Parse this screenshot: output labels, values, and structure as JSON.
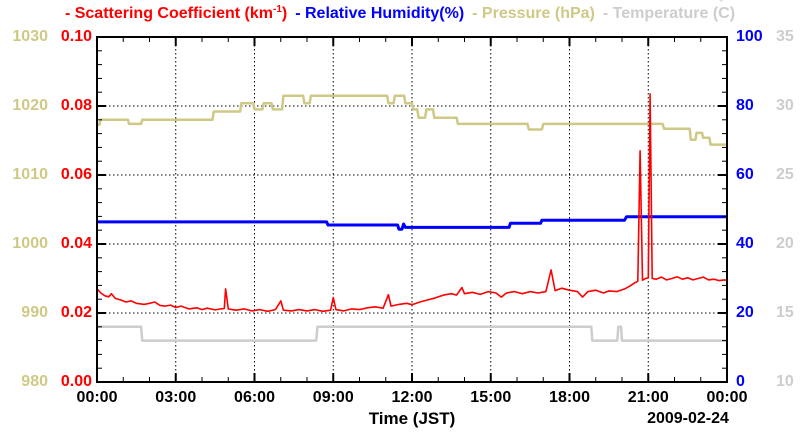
{
  "legend": {
    "entries": [
      {
        "id": "scattering",
        "dash": "-",
        "pre": "Scattering Coefficient (km",
        "sup": "-1",
        "deg": "",
        "post": ")",
        "color": "#ff0000"
      },
      {
        "id": "humidity",
        "dash": "-",
        "pre": "Relative Humidity(%)",
        "sup": "",
        "deg": "",
        "post": "",
        "color": "#0000ff"
      },
      {
        "id": "pressure",
        "dash": "-",
        "pre": "Pressure (hPa)",
        "sup": "",
        "deg": "",
        "post": "",
        "color": "#cfc985"
      },
      {
        "id": "temperature",
        "dash": "-",
        "pre": "Temperature (",
        "sup": "",
        "deg": "°",
        "post": "C)",
        "color": "#cdcdcd"
      }
    ]
  },
  "axes": {
    "pressure": {
      "ticks": [
        "1030",
        "1020",
        "1010",
        "1000",
        "990",
        "980"
      ],
      "color": "#cfc985",
      "range": [
        980,
        1030
      ]
    },
    "scattering": {
      "ticks": [
        "0.10",
        "0.08",
        "0.06",
        "0.04",
        "0.02",
        "0.00"
      ],
      "color": "#ff0000",
      "range": [
        0,
        0.1
      ]
    },
    "humidity": {
      "ticks": [
        "100",
        "80",
        "60",
        "40",
        "20",
        "0"
      ],
      "color": "#0000ff",
      "range": [
        0,
        100
      ]
    },
    "temperature": {
      "ticks": [
        "35",
        "30",
        "25",
        "20",
        "15",
        "10"
      ],
      "color": "#cdcdcd",
      "range": [
        10,
        35
      ]
    },
    "time": {
      "ticks": [
        "00:00",
        "03:00",
        "06:00",
        "09:00",
        "12:00",
        "15:00",
        "18:00",
        "21:00",
        "00:00"
      ],
      "tick_hours": [
        0,
        3,
        6,
        9,
        12,
        15,
        18,
        21,
        24
      ],
      "label": "Time (JST)",
      "date": "2009-02-24",
      "range_hours": [
        0,
        24
      ]
    }
  },
  "chart_data": {
    "type": "line",
    "title": "- Scattering Coefficient (km-1) - Relative Humidity(%) - Pressure (hPa) - Temperature (C)",
    "xlabel": "Time (JST)",
    "date_annotation": "2009-02-24",
    "x_unit": "hours JST on 2009-02-24",
    "x_range": [
      0,
      24
    ],
    "grid": {
      "x_major_hours": [
        3,
        6,
        9,
        12,
        15,
        18,
        21
      ],
      "y_major_scattering": [
        0.02,
        0.04,
        0.06,
        0.08
      ]
    },
    "series": [
      {
        "name": "Temperature",
        "unit": "C",
        "color": "#cdcdcd",
        "width": 2.5,
        "z": 1,
        "ylim": [
          10,
          35
        ],
        "points": [
          [
            0,
            14
          ],
          [
            1.68,
            14
          ],
          [
            1.72,
            13
          ],
          [
            8.35,
            13
          ],
          [
            8.4,
            14
          ],
          [
            18.83,
            14
          ],
          [
            18.87,
            13
          ],
          [
            19.82,
            13
          ],
          [
            19.86,
            14
          ],
          [
            19.96,
            14
          ],
          [
            20.0,
            13
          ],
          [
            24,
            13
          ]
        ]
      },
      {
        "name": "Pressure",
        "unit": "hPa",
        "color": "#cfc985",
        "width": 2.5,
        "z": 2,
        "ylim": [
          980,
          1030
        ],
        "points": [
          [
            0,
            1017.3
          ],
          [
            0.1,
            1017.3
          ],
          [
            0.13,
            1018.0
          ],
          [
            1.18,
            1018.0
          ],
          [
            1.22,
            1017.4
          ],
          [
            1.68,
            1017.4
          ],
          [
            1.72,
            1018.0
          ],
          [
            4.4,
            1018.0
          ],
          [
            4.45,
            1019.2
          ],
          [
            5.45,
            1019.2
          ],
          [
            5.5,
            1020.4
          ],
          [
            5.95,
            1020.4
          ],
          [
            6.0,
            1019.5
          ],
          [
            6.3,
            1019.5
          ],
          [
            6.35,
            1020.4
          ],
          [
            6.65,
            1020.4
          ],
          [
            6.7,
            1019.5
          ],
          [
            7.05,
            1019.5
          ],
          [
            7.1,
            1021.5
          ],
          [
            7.85,
            1021.5
          ],
          [
            7.9,
            1020.4
          ],
          [
            8.1,
            1020.4
          ],
          [
            8.15,
            1021.5
          ],
          [
            11.05,
            1021.5
          ],
          [
            11.1,
            1020.4
          ],
          [
            11.3,
            1020.4
          ],
          [
            11.35,
            1021.5
          ],
          [
            11.7,
            1021.5
          ],
          [
            11.75,
            1020.4
          ],
          [
            12.0,
            1020.4
          ],
          [
            12.05,
            1019.5
          ],
          [
            12.2,
            1019.5
          ],
          [
            12.25,
            1018.3
          ],
          [
            12.5,
            1018.3
          ],
          [
            12.55,
            1019.5
          ],
          [
            12.8,
            1019.5
          ],
          [
            12.85,
            1018.3
          ],
          [
            13.7,
            1018.3
          ],
          [
            13.75,
            1017.4
          ],
          [
            16.4,
            1017.4
          ],
          [
            16.45,
            1016.6
          ],
          [
            16.95,
            1016.6
          ],
          [
            17.0,
            1017.4
          ],
          [
            21.55,
            1017.4
          ],
          [
            21.6,
            1016.7
          ],
          [
            22.58,
            1016.7
          ],
          [
            22.62,
            1015.1
          ],
          [
            22.8,
            1015.1
          ],
          [
            22.84,
            1016.1
          ],
          [
            23.05,
            1016.1
          ],
          [
            23.09,
            1015.4
          ],
          [
            23.33,
            1015.4
          ],
          [
            23.37,
            1014.4
          ],
          [
            24,
            1014.4
          ]
        ]
      },
      {
        "name": "Relative Humidity",
        "unit": "%",
        "color": "#0000ff",
        "width": 3,
        "z": 3,
        "ylim": [
          0,
          100
        ],
        "points": [
          [
            0,
            46.4
          ],
          [
            8.75,
            46.4
          ],
          [
            8.8,
            45.5
          ],
          [
            11.45,
            45.5
          ],
          [
            11.5,
            44.3
          ],
          [
            11.62,
            44.3
          ],
          [
            11.68,
            45.8
          ],
          [
            11.75,
            44.8
          ],
          [
            15.7,
            44.8
          ],
          [
            15.75,
            46.0
          ],
          [
            16.9,
            46.0
          ],
          [
            16.95,
            46.9
          ],
          [
            20.1,
            46.9
          ],
          [
            20.17,
            47.9
          ],
          [
            24,
            47.9
          ]
        ]
      },
      {
        "name": "Scattering Coefficient",
        "unit": "km-1",
        "color": "#ff0000",
        "width": 1.6,
        "z": 4,
        "ylim": [
          0,
          0.1
        ],
        "points": [
          [
            0,
            0.027
          ],
          [
            0.15,
            0.0258
          ],
          [
            0.3,
            0.025
          ],
          [
            0.45,
            0.0247
          ],
          [
            0.55,
            0.0256
          ],
          [
            0.7,
            0.0242
          ],
          [
            0.9,
            0.0238
          ],
          [
            1.1,
            0.0232
          ],
          [
            1.3,
            0.0235
          ],
          [
            1.5,
            0.0228
          ],
          [
            1.8,
            0.0225
          ],
          [
            2.0,
            0.0228
          ],
          [
            2.2,
            0.0232
          ],
          [
            2.4,
            0.0222
          ],
          [
            2.6,
            0.022
          ],
          [
            2.8,
            0.0223
          ],
          [
            3.0,
            0.0216
          ],
          [
            3.2,
            0.022
          ],
          [
            3.5,
            0.0212
          ],
          [
            3.8,
            0.0215
          ],
          [
            4.0,
            0.021
          ],
          [
            4.2,
            0.0214
          ],
          [
            4.5,
            0.0209
          ],
          [
            4.7,
            0.0212
          ],
          [
            4.85,
            0.0213
          ],
          [
            4.9,
            0.027
          ],
          [
            5.0,
            0.0212
          ],
          [
            5.3,
            0.0208
          ],
          [
            5.6,
            0.0212
          ],
          [
            5.9,
            0.0206
          ],
          [
            6.2,
            0.021
          ],
          [
            6.5,
            0.0205
          ],
          [
            6.8,
            0.021
          ],
          [
            7.0,
            0.0235
          ],
          [
            7.1,
            0.0208
          ],
          [
            7.4,
            0.0206
          ],
          [
            7.7,
            0.021
          ],
          [
            8.0,
            0.0206
          ],
          [
            8.3,
            0.021
          ],
          [
            8.6,
            0.0205
          ],
          [
            8.9,
            0.0208
          ],
          [
            9.0,
            0.0245
          ],
          [
            9.1,
            0.021
          ],
          [
            9.4,
            0.0206
          ],
          [
            9.7,
            0.0212
          ],
          [
            10.0,
            0.021
          ],
          [
            10.3,
            0.0215
          ],
          [
            10.6,
            0.0218
          ],
          [
            10.9,
            0.0214
          ],
          [
            11.1,
            0.0253
          ],
          [
            11.2,
            0.022
          ],
          [
            11.5,
            0.0225
          ],
          [
            11.8,
            0.0228
          ],
          [
            12.0,
            0.0224
          ],
          [
            12.3,
            0.0232
          ],
          [
            12.6,
            0.0238
          ],
          [
            12.9,
            0.0244
          ],
          [
            13.2,
            0.0252
          ],
          [
            13.5,
            0.0256
          ],
          [
            13.7,
            0.0252
          ],
          [
            13.9,
            0.0274
          ],
          [
            14.0,
            0.0256
          ],
          [
            14.3,
            0.026
          ],
          [
            14.6,
            0.0254
          ],
          [
            14.9,
            0.0262
          ],
          [
            15.2,
            0.0258
          ],
          [
            15.4,
            0.0246
          ],
          [
            15.6,
            0.0258
          ],
          [
            15.9,
            0.0262
          ],
          [
            16.2,
            0.0256
          ],
          [
            16.5,
            0.0262
          ],
          [
            16.8,
            0.0258
          ],
          [
            17.1,
            0.0262
          ],
          [
            17.3,
            0.0325
          ],
          [
            17.45,
            0.0265
          ],
          [
            17.7,
            0.0272
          ],
          [
            18.0,
            0.0266
          ],
          [
            18.3,
            0.0262
          ],
          [
            18.5,
            0.0246
          ],
          [
            18.7,
            0.0262
          ],
          [
            19.0,
            0.0266
          ],
          [
            19.3,
            0.0258
          ],
          [
            19.5,
            0.0264
          ],
          [
            19.8,
            0.0262
          ],
          [
            20.1,
            0.027
          ],
          [
            20.3,
            0.0278
          ],
          [
            20.5,
            0.0288
          ],
          [
            20.6,
            0.0292
          ],
          [
            20.69,
            0.067
          ],
          [
            20.78,
            0.0295
          ],
          [
            20.9,
            0.03
          ],
          [
            21.0,
            0.0302
          ],
          [
            21.07,
            0.0835
          ],
          [
            21.15,
            0.03
          ],
          [
            21.3,
            0.0298
          ],
          [
            21.5,
            0.0304
          ],
          [
            21.7,
            0.0296
          ],
          [
            21.9,
            0.03
          ],
          [
            22.1,
            0.0305
          ],
          [
            22.3,
            0.0298
          ],
          [
            22.5,
            0.0302
          ],
          [
            22.7,
            0.0296
          ],
          [
            22.9,
            0.03
          ],
          [
            23.1,
            0.0304
          ],
          [
            23.3,
            0.0296
          ],
          [
            23.5,
            0.0298
          ],
          [
            23.7,
            0.0294
          ],
          [
            23.9,
            0.0296
          ],
          [
            24,
            0.0295
          ]
        ]
      }
    ]
  },
  "style": {
    "grid_color": "#000000",
    "border_color": "#000000",
    "background": "#ffffff"
  }
}
